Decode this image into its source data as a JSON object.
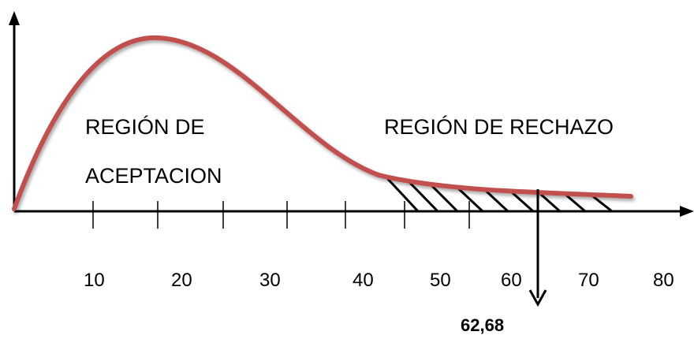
{
  "diagram": {
    "accept_region": {
      "line1": "REGIÓN DE",
      "line2": "ACEPTACION"
    },
    "reject_region": {
      "label": "REGIÓN DE RECHAZO"
    },
    "x_ticks": [
      "10",
      "20",
      "30",
      "40",
      "50",
      "60",
      "70",
      "80"
    ],
    "critical_value": "62,68",
    "colors": {
      "curve": "#c0504d",
      "axes": "#000000",
      "hatch": "#000000"
    }
  }
}
